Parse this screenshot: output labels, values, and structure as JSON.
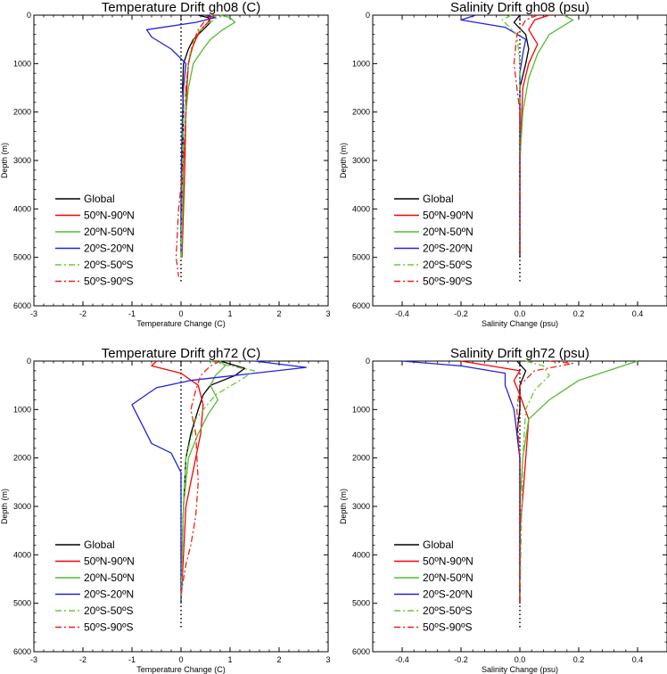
{
  "chart_data": [
    {
      "type": "line",
      "title": "Temperature Drift gh08 (C)",
      "xlabel": "Temperature Change (C)",
      "ylabel": "Depth (m)",
      "xlim": [
        -3,
        3
      ],
      "ylim": [
        6000,
        0
      ],
      "xticks": [
        "-3",
        "-2",
        "-1",
        "0",
        "1",
        "2",
        "3"
      ],
      "yticks": [
        "0",
        "1000",
        "2000",
        "3000",
        "4000",
        "5000",
        "6000"
      ],
      "grid": false,
      "legend_position": "lower-left",
      "series": [
        {
          "name": "Global",
          "color": "#000000",
          "dash": "solid",
          "x": [
            0.35,
            0.55,
            0.6,
            0.45,
            0.25,
            0.15,
            0.05,
            0.03,
            0.05,
            0.03,
            0.02,
            0.01
          ],
          "y": [
            0,
            50,
            150,
            300,
            500,
            700,
            1000,
            1500,
            2000,
            3000,
            4000,
            5000
          ]
        },
        {
          "name": "50ºN-90ºN",
          "color": "#ff0000",
          "dash": "solid",
          "x": [
            0.5,
            0.6,
            0.55,
            0.4,
            0.3,
            0.22,
            0.15,
            0.12,
            0.1,
            0.08,
            0.05,
            0.02
          ],
          "y": [
            0,
            50,
            150,
            300,
            500,
            700,
            1000,
            1500,
            2000,
            3000,
            4000,
            5000
          ]
        },
        {
          "name": "20ºN-50ºN",
          "color": "#55bb33",
          "dash": "solid",
          "x": [
            0.8,
            1.0,
            1.1,
            0.85,
            0.6,
            0.45,
            0.25,
            0.15,
            0.1,
            0.05,
            0.03,
            0.01
          ],
          "y": [
            0,
            50,
            150,
            300,
            500,
            700,
            1000,
            1500,
            2000,
            3000,
            4000,
            5000
          ]
        },
        {
          "name": "20ºS-20ºN",
          "color": "#2222dd",
          "dash": "solid",
          "x": [
            0.5,
            0.7,
            0.3,
            -0.7,
            -0.6,
            -0.2,
            0.1,
            0.05,
            0.03,
            0.01,
            0.0,
            0.0
          ],
          "y": [
            0,
            50,
            150,
            300,
            450,
            700,
            1000,
            1500,
            2000,
            3000,
            4000,
            5000
          ]
        },
        {
          "name": "20ºS-50ºS",
          "color": "#66cc33",
          "dash": "dashdot",
          "x": [
            0.6,
            0.75,
            0.5,
            0.3,
            0.2,
            0.15,
            0.1,
            0.05,
            0.03,
            0.02,
            0.0
          ],
          "y": [
            0,
            50,
            200,
            400,
            700,
            1000,
            1500,
            2000,
            3000,
            4000,
            5000
          ]
        },
        {
          "name": "50ºS-90ºS",
          "color": "#ee2211",
          "dash": "dashdot",
          "x": [
            0.7,
            0.5,
            0.35,
            0.25,
            0.15,
            0.1,
            0.1,
            0.05,
            -0.05,
            -0.1,
            -0.05
          ],
          "y": [
            0,
            100,
            300,
            600,
            1000,
            1500,
            2000,
            3000,
            4000,
            5000,
            5400
          ]
        }
      ]
    },
    {
      "type": "line",
      "title": "Salinity Drift gh08 (psu)",
      "xlabel": "Salinity Change (psu)",
      "ylabel": "Depth (m)",
      "xlim": [
        -0.5,
        0.5
      ],
      "ylim": [
        6000,
        0
      ],
      "xticks": [
        "-0.4",
        "-0.2",
        "0.0",
        "0.2",
        "0.4"
      ],
      "yticks": [
        "0",
        "1000",
        "2000",
        "3000",
        "4000",
        "5000",
        "6000"
      ],
      "grid": false,
      "legend_position": "lower-left",
      "series": [
        {
          "name": "Global",
          "color": "#000000",
          "dash": "solid",
          "x": [
            0.0,
            -0.02,
            0.02,
            0.03,
            0.02,
            0.0,
            0.0,
            0.0
          ],
          "y": [
            0,
            150,
            400,
            700,
            1000,
            1500,
            3000,
            5000
          ]
        },
        {
          "name": "50ºN-90ºN",
          "color": "#ff0000",
          "dash": "solid",
          "x": [
            0.1,
            0.05,
            0.03,
            0.06,
            0.03,
            0.01,
            0.0,
            0.0
          ],
          "y": [
            0,
            100,
            300,
            600,
            1000,
            1500,
            3000,
            5000
          ]
        },
        {
          "name": "20ºN-50ºN",
          "color": "#55bb33",
          "dash": "solid",
          "x": [
            0.15,
            0.18,
            0.1,
            0.06,
            0.03,
            0.01,
            0.0,
            0.0
          ],
          "y": [
            0,
            100,
            400,
            800,
            1300,
            2000,
            3000,
            5000
          ]
        },
        {
          "name": "20ºS-20ºN",
          "color": "#2222dd",
          "dash": "solid",
          "x": [
            -0.15,
            -0.2,
            -0.05,
            0.02,
            0.01,
            0.0,
            0.0,
            0.0
          ],
          "y": [
            0,
            100,
            250,
            500,
            800,
            1200,
            2000,
            5000
          ]
        },
        {
          "name": "20ºS-50ºS",
          "color": "#66cc33",
          "dash": "dashdot",
          "x": [
            -0.03,
            -0.06,
            -0.01,
            0.0,
            0.0,
            0.0
          ],
          "y": [
            0,
            100,
            400,
            1000,
            2000,
            5000
          ]
        },
        {
          "name": "50ºS-90ºS",
          "color": "#ee2211",
          "dash": "dashdot",
          "x": [
            0.06,
            0.02,
            -0.01,
            -0.02,
            0.0,
            0.0
          ],
          "y": [
            0,
            100,
            400,
            1000,
            2000,
            5000
          ]
        }
      ]
    },
    {
      "type": "line",
      "title": "Temperature Drift gh72 (C)",
      "xlabel": "Temperature Change (C)",
      "ylabel": "Depth (m)",
      "xlim": [
        -3,
        3
      ],
      "ylim": [
        6000,
        0
      ],
      "xticks": [
        "-3",
        "-2",
        "-1",
        "0",
        "1",
        "2",
        "3"
      ],
      "yticks": [
        "0",
        "1000",
        "2000",
        "3000",
        "4000",
        "5000",
        "6000"
      ],
      "grid": false,
      "legend_position": "lower-left",
      "series": [
        {
          "name": "Global",
          "color": "#000000",
          "dash": "solid",
          "x": [
            0.8,
            1.3,
            1.1,
            0.6,
            0.45,
            0.35,
            0.2,
            0.1,
            0.05,
            0.02,
            0.0
          ],
          "y": [
            0,
            150,
            300,
            500,
            700,
            1000,
            1500,
            2000,
            3000,
            4000,
            5000
          ]
        },
        {
          "name": "50ºN-90ºN",
          "color": "#ff0000",
          "dash": "solid",
          "x": [
            -0.5,
            -0.6,
            0.0,
            0.35,
            0.45,
            0.4,
            0.3,
            0.2,
            0.1,
            0.05,
            0.0
          ],
          "y": [
            0,
            100,
            250,
            500,
            900,
            1500,
            2000,
            2500,
            3000,
            4000,
            5000
          ]
        },
        {
          "name": "20ºN-50ºN",
          "color": "#55bb33",
          "dash": "solid",
          "x": [
            0.8,
            0.9,
            0.7,
            0.6,
            0.75,
            0.55,
            0.35,
            0.15,
            0.05,
            0.02,
            0.0
          ],
          "y": [
            0,
            100,
            300,
            500,
            800,
            1100,
            1500,
            2000,
            3000,
            4000,
            5000
          ]
        },
        {
          "name": "20ºS-20ºN",
          "color": "#2222dd",
          "dash": "solid",
          "x": [
            1.5,
            2.55,
            1.5,
            0.2,
            -0.5,
            -1.0,
            -0.8,
            -0.6,
            -0.2,
            0.0,
            0.0,
            0.0
          ],
          "y": [
            0,
            130,
            250,
            400,
            550,
            900,
            1300,
            1700,
            1900,
            2300,
            3000,
            5000
          ]
        },
        {
          "name": "20ºS-50ºS",
          "color": "#66cc33",
          "dash": "dashdot",
          "x": [
            0.6,
            1.0,
            1.5,
            1.2,
            0.7,
            0.3,
            0.1,
            0.05,
            0.0
          ],
          "y": [
            0,
            100,
            200,
            400,
            700,
            1200,
            2000,
            3000,
            5000
          ]
        },
        {
          "name": "50ºS-90ºS",
          "color": "#ee2211",
          "dash": "dashdot",
          "x": [
            0.8,
            0.6,
            0.4,
            0.3,
            0.2,
            0.3,
            0.35,
            0.3,
            0.2,
            0.1,
            0.0
          ],
          "y": [
            0,
            100,
            300,
            600,
            1000,
            1500,
            2500,
            3200,
            3800,
            4200,
            4800
          ]
        }
      ]
    },
    {
      "type": "line",
      "title": "Salinity Drift gh72 (psu)",
      "xlabel": "Salinity Change (psu)",
      "ylabel": "Depth (m)",
      "xlim": [
        -0.5,
        0.5
      ],
      "ylim": [
        6000,
        0
      ],
      "xticks": [
        "-0.4",
        "-0.2",
        "0.0",
        "0.2",
        "0.4"
      ],
      "yticks": [
        "0",
        "1000",
        "2000",
        "3000",
        "4000",
        "5000",
        "6000"
      ],
      "grid": false,
      "legend_position": "lower-left",
      "series": [
        {
          "name": "Global",
          "color": "#000000",
          "dash": "solid",
          "x": [
            -0.01,
            0.02,
            0.0,
            0.0,
            -0.01,
            0.0,
            0.0,
            0.0
          ],
          "y": [
            0,
            200,
            500,
            1000,
            1500,
            2000,
            3000,
            5000
          ]
        },
        {
          "name": "50ºN-90ºN",
          "color": "#ff0000",
          "dash": "solid",
          "x": [
            -0.2,
            -0.1,
            0.0,
            -0.02,
            0.0,
            0.03,
            0.02,
            0.01,
            0.0,
            0.0
          ],
          "y": [
            0,
            100,
            200,
            400,
            700,
            1200,
            2000,
            2800,
            3500,
            5000
          ]
        },
        {
          "name": "20ºN-50ºN",
          "color": "#55bb33",
          "dash": "solid",
          "x": [
            0.4,
            0.35,
            0.2,
            0.1,
            0.03,
            0.01,
            0.0,
            0.0
          ],
          "y": [
            0,
            100,
            400,
            800,
            1200,
            2000,
            3000,
            5000
          ]
        },
        {
          "name": "20ºS-20ºN",
          "color": "#2222dd",
          "dash": "solid",
          "x": [
            -0.4,
            -0.2,
            -0.05,
            -0.05,
            -0.02,
            0.0,
            0.0
          ],
          "y": [
            0,
            100,
            250,
            500,
            1000,
            2000,
            5000
          ]
        },
        {
          "name": "20ºS-50ºS",
          "color": "#66cc33",
          "dash": "dashdot",
          "x": [
            0.02,
            0.08,
            0.1,
            0.05,
            0.02,
            0.01,
            0.0
          ],
          "y": [
            0,
            100,
            300,
            600,
            1000,
            2000,
            5000
          ]
        },
        {
          "name": "50ºS-90ºS",
          "color": "#ee2211",
          "dash": "dashdot",
          "x": [
            0.1,
            0.18,
            0.05,
            0.0,
            -0.01,
            0.0,
            0.0
          ],
          "y": [
            0,
            50,
            200,
            500,
            1000,
            2000,
            5000
          ]
        }
      ]
    }
  ]
}
